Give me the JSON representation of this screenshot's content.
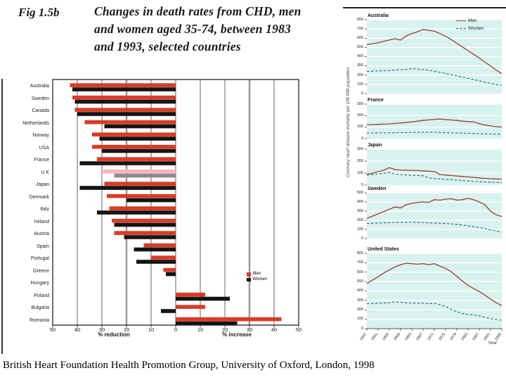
{
  "slide": {
    "fig_label": "Fig 1.5b",
    "title_lines": [
      "Changes in death rates from CHD, men",
      "and women aged 35-74, between 1983",
      "and 1993, selected countries"
    ],
    "caption": "British Heart Foundation Health Promotion Group, University of Oxford, London, 1998"
  },
  "colors": {
    "bar_men": "#da3b25",
    "bar_women": "#141414",
    "bar_men_highlight": "#f2b6bd",
    "bar_women_highlight": "#8e8893",
    "line_men": "#9c3a31",
    "line_women": "#23647f",
    "plot_bg": "#d8f2ef",
    "grid_white": "#ffffff",
    "thick_grid": "#999999"
  },
  "line_panel": {
    "ylabel": "Coronary heart disease mortality per 100 000 population",
    "xlabel": "Year",
    "xticks": [
      "1947",
      "1951",
      "1955",
      "1959",
      "1963",
      "1967",
      "1971",
      "1975",
      "1979",
      "1983",
      "1987",
      "1991",
      "1995"
    ],
    "legend": [
      "Men",
      "Women"
    ]
  },
  "chart_data": [
    {
      "type": "bar",
      "title": "Changes in death rates from CHD, men and women aged 35-74, between 1983 and 1993",
      "orientation": "horizontal",
      "xlim": [
        -50,
        50
      ],
      "xticks": [
        50,
        40,
        30,
        20,
        10,
        0,
        10,
        20,
        30,
        40,
        50
      ],
      "axis": {
        "left_label": "% reduction",
        "right_label": "% increase"
      },
      "legend": [
        "Men",
        "Women"
      ],
      "highlight_category": "U K",
      "categories": [
        "Australia",
        "Sweden",
        "Canada",
        "Netherlands",
        "Norway",
        "USA",
        "France",
        "U K",
        "Japan",
        "Denmark",
        "Italy",
        "Ireland",
        "Austria",
        "Spain",
        "Portugal",
        "Greece",
        "Hungary",
        "Poland",
        "Bulgaria",
        "Romania"
      ],
      "series": [
        {
          "name": "Men",
          "values": [
            -43,
            -42,
            -41,
            -37,
            -34,
            -34,
            -32,
            -30,
            -29,
            -28,
            -27,
            -26,
            -25,
            -13,
            -10,
            -5,
            0,
            12,
            12,
            43
          ]
        },
        {
          "name": "Women",
          "values": [
            -42,
            -41,
            -40,
            -29,
            -31,
            -30,
            -39,
            -25,
            -39,
            -20,
            -32,
            -25,
            -21,
            -17,
            -16,
            -4,
            0,
            22,
            -6,
            25
          ]
        }
      ]
    },
    {
      "type": "line",
      "title": "Australia",
      "ylim": [
        0,
        800
      ],
      "ytick_step": 100,
      "x_start": 1947,
      "x_end": 1995,
      "series": [
        {
          "name": "Men",
          "values": [
            530,
            540,
            550,
            565,
            580,
            595,
            580,
            625,
            650,
            670,
            695,
            685,
            675,
            650,
            620,
            585,
            545,
            505,
            465,
            425,
            385,
            340,
            300,
            255,
            215
          ]
        },
        {
          "name": "Women",
          "values": [
            240,
            242,
            245,
            248,
            250,
            255,
            258,
            262,
            270,
            266,
            260,
            252,
            242,
            230,
            218,
            205,
            192,
            178,
            165,
            152,
            138,
            124,
            110,
            98,
            90
          ]
        }
      ]
    },
    {
      "type": "line",
      "title": "France",
      "ylim": [
        0,
        300
      ],
      "ytick_step": 100,
      "x_start": 1947,
      "x_end": 1995,
      "series": [
        {
          "name": "Men",
          "values": [
            120,
            122,
            124,
            126,
            128,
            132,
            136,
            141,
            146,
            152,
            158,
            163,
            168,
            170,
            166,
            162,
            158,
            152,
            148,
            145,
            130,
            118,
            110,
            104,
            100
          ]
        },
        {
          "name": "Women",
          "values": [
            48,
            49,
            50,
            50,
            51,
            52,
            52,
            53,
            54,
            55,
            55,
            56,
            55,
            54,
            52,
            50,
            49,
            48,
            46,
            44,
            42,
            41,
            40,
            39,
            38
          ]
        }
      ]
    },
    {
      "type": "line",
      "title": "Japan",
      "ylim": [
        0,
        300
      ],
      "ytick_step": 100,
      "x_start": 1947,
      "x_end": 1995,
      "series": [
        {
          "name": "Men",
          "values": [
            90,
            100,
            112,
            124,
            145,
            130,
            126,
            125,
            123,
            121,
            119,
            116,
            113,
            88,
            84,
            80,
            76,
            72,
            68,
            64,
            60,
            56,
            53,
            51,
            50
          ]
        },
        {
          "name": "Women",
          "values": [
            84,
            89,
            94,
            99,
            105,
            92,
            88,
            85,
            82,
            80,
            78,
            60,
            56,
            52,
            48,
            45,
            42,
            38,
            34,
            30,
            28,
            26,
            24,
            22,
            20
          ]
        }
      ]
    },
    {
      "type": "line",
      "title": "Sweden",
      "ylim": [
        0,
        500
      ],
      "ytick_step": 100,
      "x_start": 1947,
      "x_end": 1995,
      "series": [
        {
          "name": "Men",
          "values": [
            220,
            245,
            270,
            295,
            320,
            345,
            335,
            370,
            385,
            395,
            400,
            395,
            425,
            420,
            430,
            435,
            420,
            425,
            440,
            425,
            400,
            370,
            300,
            260,
            240
          ]
        },
        {
          "name": "Women",
          "values": [
            165,
            168,
            170,
            172,
            174,
            176,
            178,
            178,
            180,
            178,
            175,
            172,
            170,
            168,
            165,
            160,
            155,
            148,
            140,
            130,
            120,
            108,
            95,
            82,
            70
          ]
        }
      ]
    },
    {
      "type": "line",
      "title": "United States",
      "ylim": [
        0,
        800
      ],
      "ytick_step": 100,
      "x_start": 1947,
      "x_end": 1995,
      "series": [
        {
          "name": "Men",
          "values": [
            480,
            515,
            550,
            590,
            625,
            655,
            680,
            695,
            690,
            685,
            690,
            680,
            690,
            665,
            640,
            605,
            555,
            505,
            460,
            425,
            395,
            355,
            315,
            275,
            245
          ]
        },
        {
          "name": "Women",
          "values": [
            265,
            268,
            270,
            272,
            275,
            285,
            280,
            275,
            272,
            270,
            272,
            265,
            270,
            255,
            235,
            205,
            180,
            160,
            152,
            145,
            135,
            120,
            108,
            98,
            90
          ]
        }
      ]
    }
  ]
}
